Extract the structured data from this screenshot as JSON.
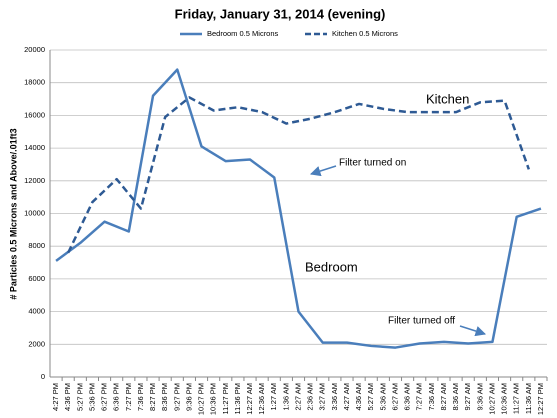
{
  "chart_data": {
    "type": "line",
    "title": "Friday, January 31, 2014 (evening)",
    "y_label": "# Particles 0.5 Microns and Above/.01ft3",
    "categories": [
      "4:27 PM",
      "4:36 PM",
      "5:27 PM",
      "5:36 PM",
      "6:27 PM",
      "6:36 PM",
      "7:27 PM",
      "7:36 PM",
      "8:27 PM",
      "8:36 PM",
      "9:27 PM",
      "9:36 PM",
      "10:27 PM",
      "10:36 PM",
      "11:27 PM",
      "11:36 PM",
      "12:27 AM",
      "12:36 AM",
      "1:27 AM",
      "1:36 AM",
      "2:27 AM",
      "2:36 AM",
      "3:27 AM",
      "3:36 AM",
      "4:27 AM",
      "4:36 AM",
      "5:27 AM",
      "5:36 AM",
      "6:27 AM",
      "6:36 AM",
      "7:27 AM",
      "7:36 AM",
      "8:27 AM",
      "8:36 AM",
      "9:27 AM",
      "9:36 AM",
      "10:27 AM",
      "10:36 AM",
      "11:27 AM",
      "11:36 AM",
      "12:27 PM"
    ],
    "series": [
      {
        "name": "Bedroom 0.5 Microns",
        "color": "#4a7ebb",
        "dash": false,
        "values": [
          7100,
          null,
          8200,
          null,
          9500,
          null,
          8900,
          null,
          17200,
          null,
          18800,
          null,
          14100,
          null,
          13200,
          null,
          13300,
          null,
          12200,
          null,
          4000,
          null,
          2100,
          null,
          2100,
          null,
          1900,
          null,
          1800,
          null,
          2050,
          null,
          2150,
          null,
          2050,
          null,
          2150,
          null,
          9800,
          null,
          10300
        ]
      },
      {
        "name": "Kitchen 0.5 Microns",
        "color": "#2e5a94",
        "dash": true,
        "values": [
          null,
          7600,
          null,
          10700,
          null,
          12100,
          null,
          10300,
          null,
          15900,
          null,
          17100,
          null,
          16300,
          null,
          16500,
          null,
          16200,
          null,
          15500,
          null,
          15800,
          null,
          16200,
          null,
          16700,
          null,
          16400,
          null,
          16200,
          null,
          16200,
          null,
          16200,
          null,
          16800,
          null,
          16900,
          null,
          12700,
          null
        ]
      }
    ],
    "connect_gaps": true,
    "ylim": [
      0,
      20000
    ],
    "yticks": [
      0,
      2000,
      4000,
      6000,
      8000,
      10000,
      12000,
      14000,
      16000,
      18000,
      20000
    ],
    "annotations": [
      {
        "text": "Kitchen"
      },
      {
        "text": "Bedroom"
      },
      {
        "text": "Filter turned on"
      },
      {
        "text": "Filter turned off"
      }
    ]
  }
}
